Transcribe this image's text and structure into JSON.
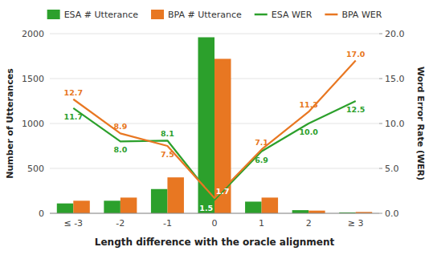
{
  "chart_data": {
    "type": "bar",
    "categories": [
      "≤ -3",
      "-2",
      "-1",
      "0",
      "1",
      "2",
      "≥ 3"
    ],
    "xlabel": "Length difference with the oracle alignment",
    "ylabel": "Number of Utterances",
    "y2label": "Word Error Rate (WER)",
    "ylim": [
      0,
      2000
    ],
    "yticks": [
      0,
      500,
      1000,
      1500,
      2000
    ],
    "y2lim": [
      0,
      20.0
    ],
    "y2ticks": [
      {
        "value": 0,
        "label": "0.0"
      },
      {
        "value": 5,
        "label": "5.0"
      },
      {
        "value": 10,
        "label": "10.0"
      },
      {
        "value": 15,
        "label": "15.0"
      },
      {
        "value": 20,
        "label": "20.0"
      }
    ],
    "grid": true,
    "legend": "top",
    "series": [
      {
        "name": "ESA # Utterance",
        "type": "bar",
        "color": "#2ca02c",
        "values": [
          110,
          140,
          270,
          1960,
          130,
          35,
          10
        ]
      },
      {
        "name": "BPA # Utterance",
        "type": "bar",
        "color": "#e87722",
        "values": [
          140,
          175,
          400,
          1720,
          175,
          30,
          15
        ]
      },
      {
        "name": "ESA WER",
        "type": "line",
        "axis": "y2",
        "color": "#2ca02c",
        "values": [
          11.7,
          8.0,
          8.1,
          1.5,
          6.9,
          10.0,
          12.5
        ],
        "data_labels": true,
        "value_labels": [
          "11.7",
          "8.0",
          "8.1",
          "1.5",
          "6.9",
          "10.0",
          "12.5"
        ]
      },
      {
        "name": "BPA WER",
        "type": "line",
        "axis": "y2",
        "color": "#e87722",
        "values": [
          12.7,
          8.9,
          7.5,
          1.7,
          7.1,
          11.3,
          17.0
        ],
        "data_labels": true,
        "value_labels": [
          "12.7",
          "8.9",
          "7.5",
          "1.7",
          "7.1",
          "11.3",
          "17.0"
        ]
      }
    ]
  }
}
